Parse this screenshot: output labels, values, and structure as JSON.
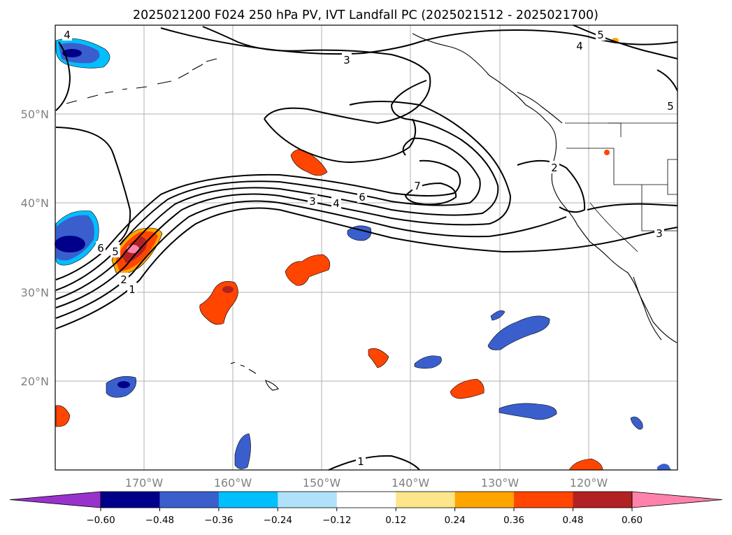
{
  "title": "2025021200 F024 250 hPa PV, IVT Landfall PC (2025021512 - 2025021700)",
  "map": {
    "lat_labels": [
      {
        "text": "50°N",
        "lat": 50
      },
      {
        "text": "40°N",
        "lat": 40
      },
      {
        "text": "30°N",
        "lat": 30
      },
      {
        "text": "20°N",
        "lat": 20
      }
    ],
    "lon_labels": [
      {
        "text": "170°W",
        "lon": -170
      },
      {
        "text": "160°W",
        "lon": -160
      },
      {
        "text": "150°W",
        "lon": -150
      },
      {
        "text": "140°W",
        "lon": -140
      },
      {
        "text": "130°W",
        "lon": -130
      },
      {
        "text": "120°W",
        "lon": -120
      }
    ],
    "extent": {
      "lon_min": -180,
      "lon_max": -110,
      "lat_min": 10,
      "lat_max": 60
    },
    "contour_labels": [
      "1",
      "2",
      "3",
      "4",
      "5",
      "6",
      "7"
    ]
  },
  "colorbar": {
    "colors": [
      "#9932cc",
      "#00008b",
      "#3a5fcd",
      "#00bfff",
      "#afe1fa",
      "#ffffff",
      "#fde68a",
      "#ffa500",
      "#ff4500",
      "#b22222",
      "#ff82ab",
      "#ff82ab"
    ],
    "tick_labels": [
      "−0.60",
      "−0.48",
      "−0.36",
      "−0.24",
      "−0.12",
      "0.12",
      "0.24",
      "0.36",
      "0.48",
      "0.60"
    ]
  }
}
